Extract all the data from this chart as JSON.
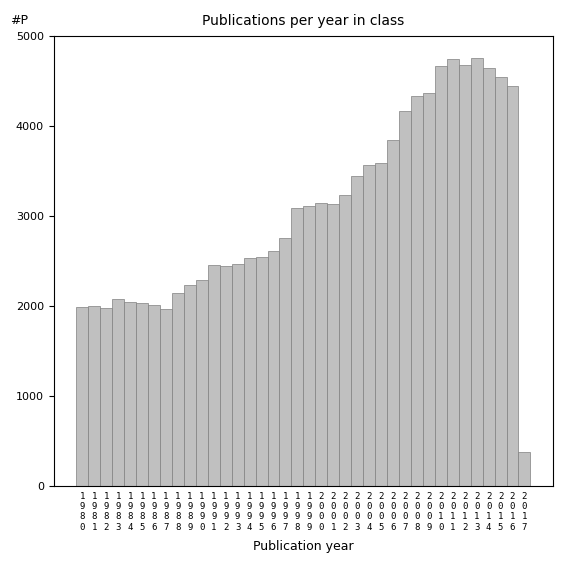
{
  "title": "Publications per year in class",
  "xlabel": "Publication year",
  "ylabel": "#P",
  "years": [
    1980,
    1981,
    1982,
    1983,
    1984,
    1985,
    1986,
    1987,
    1988,
    1989,
    1990,
    1991,
    1992,
    1993,
    1994,
    1995,
    1996,
    1997,
    1998,
    1999,
    2000,
    2001,
    2002,
    2003,
    2004,
    2005,
    2006,
    2007,
    2008,
    2009,
    2010,
    2011,
    2012,
    2013,
    2014,
    2015,
    2016,
    2017
  ],
  "values": [
    1990,
    2000,
    1980,
    2080,
    2040,
    2030,
    2010,
    1970,
    2150,
    2230,
    2290,
    2460,
    2440,
    2470,
    2530,
    2540,
    2610,
    2760,
    3090,
    3110,
    3150,
    3130,
    3230,
    3440,
    3570,
    3590,
    3850,
    4170,
    4330,
    4370,
    4670,
    4750,
    4680,
    4760,
    4650,
    4540,
    4440,
    380
  ],
  "bar_color": "#c0c0c0",
  "bar_edgecolor": "#808080",
  "bg_color": "#ffffff",
  "ylim": [
    0,
    5000
  ],
  "yticks": [
    0,
    1000,
    2000,
    3000,
    4000,
    5000
  ],
  "figsize": [
    5.67,
    5.67
  ],
  "dpi": 100
}
